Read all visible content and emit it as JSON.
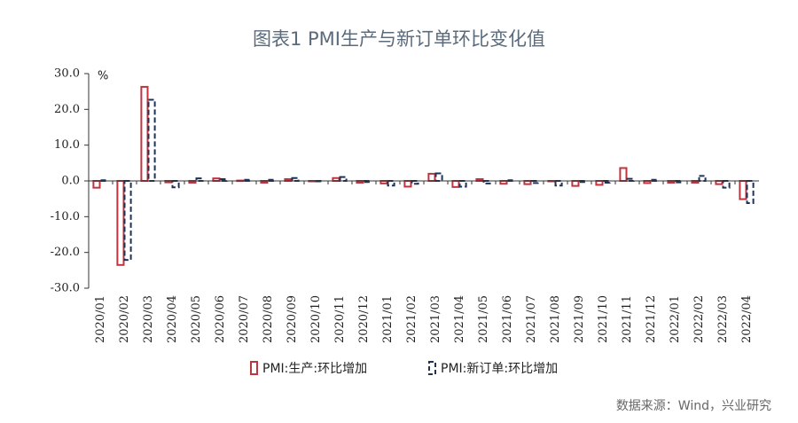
{
  "chart_data": {
    "type": "bar",
    "title": "图表1 PMI生产与新订单环比变化值",
    "unit": "%",
    "source": "数据来源：Wind，兴业研究",
    "categories": [
      "2020/01",
      "2020/02",
      "2020/03",
      "2020/04",
      "2020/05",
      "2020/06",
      "2020/07",
      "2020/08",
      "2020/09",
      "2020/10",
      "2020/11",
      "2020/12",
      "2021/01",
      "2021/02",
      "2021/03",
      "2021/04",
      "2021/05",
      "2021/06",
      "2021/07",
      "2021/08",
      "2021/09",
      "2021/10",
      "2021/11",
      "2021/12",
      "2022/01",
      "2022/02",
      "2022/03",
      "2022/04"
    ],
    "series": [
      {
        "name": "PMI:生产:环比增加",
        "color": "#c0343f",
        "dashed": false,
        "values": [
          -1.9,
          -23.5,
          26.3,
          -0.4,
          -0.5,
          0.7,
          0.1,
          -0.5,
          0.5,
          -0.1,
          0.8,
          -0.5,
          -0.7,
          -1.6,
          2.0,
          -1.7,
          0.5,
          -0.8,
          -0.9,
          -0.1,
          -1.4,
          -1.1,
          3.6,
          -0.6,
          -0.5,
          -0.5,
          -0.9,
          -5.1
        ]
      },
      {
        "name": "PMI:新订单:环比增加",
        "color": "#1f3357",
        "dashed": true,
        "values": [
          0.2,
          -22.1,
          22.7,
          -1.8,
          0.7,
          0.5,
          0.3,
          0.3,
          0.8,
          0,
          1.1,
          -0.3,
          -1.3,
          -0.8,
          2.1,
          -1.6,
          -0.7,
          0.2,
          -0.6,
          -1.3,
          -0.3,
          -0.5,
          0.6,
          0.3,
          -0.4,
          1.4,
          -1.9,
          -6.2
        ]
      }
    ],
    "ylim": [
      -30,
      30
    ],
    "yticks": [
      {
        "value": -30,
        "label": "-30.0"
      },
      {
        "value": -20,
        "label": "-20.0"
      },
      {
        "value": -10,
        "label": "-10.0"
      },
      {
        "value": 0,
        "label": "0.0"
      },
      {
        "value": 10,
        "label": "10.0"
      },
      {
        "value": 20,
        "label": "20.0"
      },
      {
        "value": 30,
        "label": "30.0"
      }
    ]
  }
}
